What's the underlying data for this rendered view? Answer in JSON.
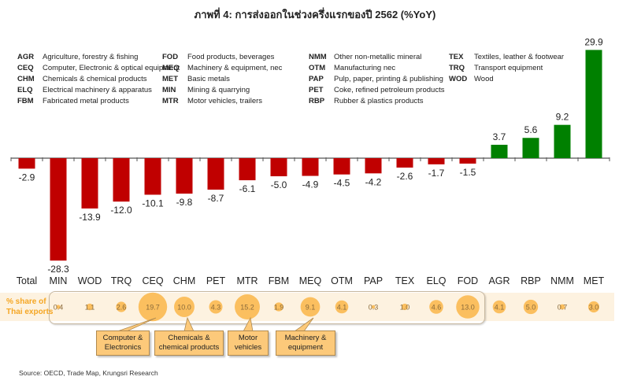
{
  "title": "ภาพที่ 4: การส่งออกในช่วงครึ่งแรกของปี 2562 (%YoY)",
  "legend": {
    "col1": [
      {
        "code": "AGR",
        "label": "Agriculture, forestry & fishing"
      },
      {
        "code": "CEQ",
        "label": "Computer, Electronic & optical equipment"
      },
      {
        "code": "CHM",
        "label": "Chemicals & chemical products"
      },
      {
        "code": "ELQ",
        "label": "Electrical machinery & apparatus"
      },
      {
        "code": "FBM",
        "label": "Fabricated metal products"
      }
    ],
    "col2": [
      {
        "code": "FOD",
        "label": "Food products, beverages"
      },
      {
        "code": "MEQ",
        "label": "Machinery & equipment, nec"
      },
      {
        "code": "MET",
        "label": "Basic metals"
      },
      {
        "code": "MIN",
        "label": "Mining & quarrying"
      },
      {
        "code": "MTR",
        "label": "Motor vehicles, trailers"
      }
    ],
    "col3": [
      {
        "code": "NMM",
        "label": "Other non-metallic mineral"
      },
      {
        "code": "OTM",
        "label": "Manufacturing nec"
      },
      {
        "code": "PAP",
        "label": "Pulp, paper, printing & publishing"
      },
      {
        "code": "PET",
        "label": "Coke, refined petroleum products"
      },
      {
        "code": "RBP",
        "label": "Rubber & plastics products"
      }
    ],
    "col4": [
      {
        "code": "TEX",
        "label": "Textiles, leather & footwear"
      },
      {
        "code": "TRQ",
        "label": "Transport equipment"
      },
      {
        "code": "WOD",
        "label": "Wood"
      }
    ]
  },
  "share": {
    "label_line1": "% share of",
    "label_line2": "Thai exports"
  },
  "callouts": [
    {
      "line1": "Computer &",
      "line2": "Electronics"
    },
    {
      "line1": "Chemicals &",
      "line2": "chemical products"
    },
    {
      "line1": "Motor",
      "line2": "vehicles"
    },
    {
      "line1": "Machinery &",
      "line2": "equipment"
    }
  ],
  "source": "Source: OECD, Trade Map, Krungsri Research",
  "colors": {
    "negative": "#c00000",
    "positive": "#008000",
    "bubble": "#fbbf5f"
  },
  "chart_data": {
    "type": "bar",
    "title": "ภาพที่ 4: การส่งออกในช่วงครึ่งแรกของปี 2562 (%YoY)",
    "categories": [
      "Total",
      "MIN",
      "WOD",
      "TRQ",
      "CEQ",
      "CHM",
      "PET",
      "MTR",
      "FBM",
      "MEQ",
      "OTM",
      "PAP",
      "TEX",
      "ELQ",
      "FOD",
      "AGR",
      "RBP",
      "NMM",
      "MET"
    ],
    "values": [
      -2.9,
      -28.3,
      -13.9,
      -12.0,
      -10.1,
      -9.8,
      -8.7,
      -6.1,
      -5.0,
      -4.9,
      -4.5,
      -4.2,
      -2.6,
      -1.7,
      -1.5,
      3.7,
      5.6,
      9.2,
      29.9
    ],
    "share_of_exports": [
      null,
      0.4,
      1.1,
      2.6,
      19.7,
      10.0,
      4.3,
      15.2,
      1.9,
      9.1,
      4.1,
      0.3,
      1.0,
      4.6,
      13.0,
      4.1,
      5.0,
      0.7,
      3.0
    ],
    "xlabel": "",
    "ylabel": "%YoY",
    "ylim": [
      -30,
      31
    ],
    "grid": false
  }
}
